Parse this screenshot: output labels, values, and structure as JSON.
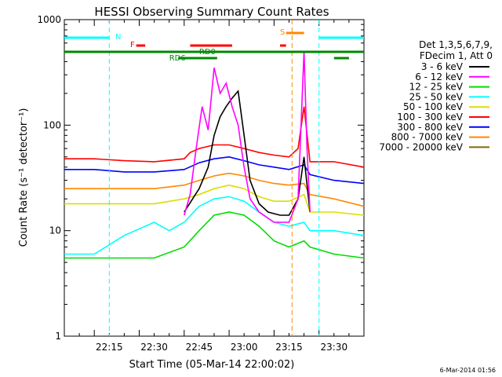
{
  "chart_data": {
    "type": "line",
    "title": "HESSI Observing Summary Count Rates",
    "xlabel": "Start Time (05-Mar-14 22:00:02)",
    "ylabel": "Count Rate (s⁻¹ detector⁻¹)",
    "ylog": true,
    "ylim": [
      1,
      1000
    ],
    "xlim_minutes": [
      0,
      100
    ],
    "x_ticks": [
      "22:15",
      "22:30",
      "22:45",
      "23:00",
      "23:15",
      "23:30"
    ],
    "y_ticks": [
      "1",
      "10",
      "100",
      "1000"
    ],
    "timestamp": "6-Mar-2014 01:56",
    "legend_header": [
      "Det 1,3,5,6,7,9,",
      "FDecim 1, Att 0"
    ],
    "series": [
      {
        "name": "3 - 6 keV",
        "color": "#000000",
        "points": [
          [
            40,
            15
          ],
          [
            45,
            25
          ],
          [
            48,
            40
          ],
          [
            50,
            80
          ],
          [
            52,
            120
          ],
          [
            54,
            150
          ],
          [
            56,
            180
          ],
          [
            58,
            210
          ],
          [
            60,
            80
          ],
          [
            62,
            30
          ],
          [
            65,
            18
          ],
          [
            68,
            15
          ],
          [
            72,
            14
          ],
          [
            75,
            14
          ],
          [
            78,
            20
          ],
          [
            80,
            50
          ],
          [
            82,
            15
          ]
        ]
      },
      {
        "name": "6 - 12 keV",
        "color": "#ff00ff",
        "points": [
          [
            40,
            14
          ],
          [
            42,
            22
          ],
          [
            44,
            60
          ],
          [
            46,
            150
          ],
          [
            48,
            90
          ],
          [
            50,
            350
          ],
          [
            52,
            200
          ],
          [
            54,
            250
          ],
          [
            56,
            150
          ],
          [
            58,
            100
          ],
          [
            60,
            40
          ],
          [
            62,
            20
          ],
          [
            65,
            15
          ],
          [
            70,
            12
          ],
          [
            75,
            12
          ],
          [
            78,
            20
          ],
          [
            80,
            500
          ],
          [
            81,
            60
          ],
          [
            82,
            15
          ]
        ]
      },
      {
        "name": "12 - 25 keV",
        "color": "#00dd00",
        "points": [
          [
            0,
            5.5
          ],
          [
            10,
            5.5
          ],
          [
            20,
            5.5
          ],
          [
            30,
            5.5
          ],
          [
            40,
            7
          ],
          [
            45,
            10
          ],
          [
            50,
            14
          ],
          [
            55,
            15
          ],
          [
            60,
            14
          ],
          [
            65,
            11
          ],
          [
            70,
            8
          ],
          [
            75,
            7
          ],
          [
            80,
            8
          ],
          [
            82,
            7
          ],
          [
            90,
            6
          ],
          [
            100,
            5.5
          ]
        ]
      },
      {
        "name": "25 - 50 keV",
        "color": "#00ffff",
        "points": [
          [
            0,
            6
          ],
          [
            10,
            6
          ],
          [
            20,
            9
          ],
          [
            30,
            12
          ],
          [
            35,
            10
          ],
          [
            40,
            12
          ],
          [
            45,
            17
          ],
          [
            50,
            20
          ],
          [
            55,
            21
          ],
          [
            60,
            19
          ],
          [
            65,
            15
          ],
          [
            70,
            12
          ],
          [
            75,
            11
          ],
          [
            80,
            12
          ],
          [
            82,
            10
          ],
          [
            90,
            10
          ],
          [
            100,
            9
          ]
        ]
      },
      {
        "name": "50 - 100 keV",
        "color": "#dddd00",
        "points": [
          [
            0,
            18
          ],
          [
            10,
            18
          ],
          [
            20,
            18
          ],
          [
            30,
            18
          ],
          [
            40,
            20
          ],
          [
            45,
            22
          ],
          [
            50,
            25
          ],
          [
            55,
            27
          ],
          [
            60,
            25
          ],
          [
            65,
            21
          ],
          [
            70,
            19
          ],
          [
            75,
            19
          ],
          [
            80,
            22
          ],
          [
            82,
            15
          ],
          [
            90,
            15
          ],
          [
            100,
            14
          ]
        ]
      },
      {
        "name": "100 - 300 keV",
        "color": "#ff0000",
        "points": [
          [
            0,
            48
          ],
          [
            10,
            48
          ],
          [
            20,
            46
          ],
          [
            30,
            45
          ],
          [
            40,
            48
          ],
          [
            42,
            55
          ],
          [
            45,
            60
          ],
          [
            50,
            65
          ],
          [
            55,
            65
          ],
          [
            60,
            60
          ],
          [
            65,
            55
          ],
          [
            70,
            52
          ],
          [
            75,
            50
          ],
          [
            78,
            60
          ],
          [
            80,
            150
          ],
          [
            82,
            45
          ],
          [
            90,
            45
          ],
          [
            100,
            40
          ]
        ]
      },
      {
        "name": "300 - 800 keV",
        "color": "#0000ff",
        "points": [
          [
            0,
            38
          ],
          [
            10,
            38
          ],
          [
            20,
            36
          ],
          [
            30,
            36
          ],
          [
            40,
            38
          ],
          [
            45,
            44
          ],
          [
            50,
            48
          ],
          [
            55,
            50
          ],
          [
            60,
            46
          ],
          [
            65,
            42
          ],
          [
            70,
            40
          ],
          [
            75,
            38
          ],
          [
            80,
            42
          ],
          [
            82,
            34
          ],
          [
            90,
            30
          ],
          [
            100,
            28
          ]
        ]
      },
      {
        "name": "800 - 7000 keV",
        "color": "#ff8800",
        "points": [
          [
            0,
            25
          ],
          [
            10,
            25
          ],
          [
            20,
            25
          ],
          [
            30,
            25
          ],
          [
            40,
            27
          ],
          [
            45,
            30
          ],
          [
            50,
            33
          ],
          [
            55,
            35
          ],
          [
            60,
            33
          ],
          [
            65,
            30
          ],
          [
            70,
            28
          ],
          [
            75,
            27
          ],
          [
            80,
            28
          ],
          [
            82,
            22
          ],
          [
            90,
            20
          ],
          [
            100,
            17
          ]
        ]
      },
      {
        "name": "7000 - 20000 keV",
        "color": "#886600",
        "points": []
      }
    ],
    "flags": [
      {
        "label": "N",
        "color": "#00ffff"
      },
      {
        "label": "F",
        "color": "#ff0000"
      },
      {
        "label": "RD0",
        "color": "#008800"
      },
      {
        "label": "RD6",
        "color": "#008800"
      },
      {
        "label": "S",
        "color": "#ff8800"
      }
    ]
  }
}
